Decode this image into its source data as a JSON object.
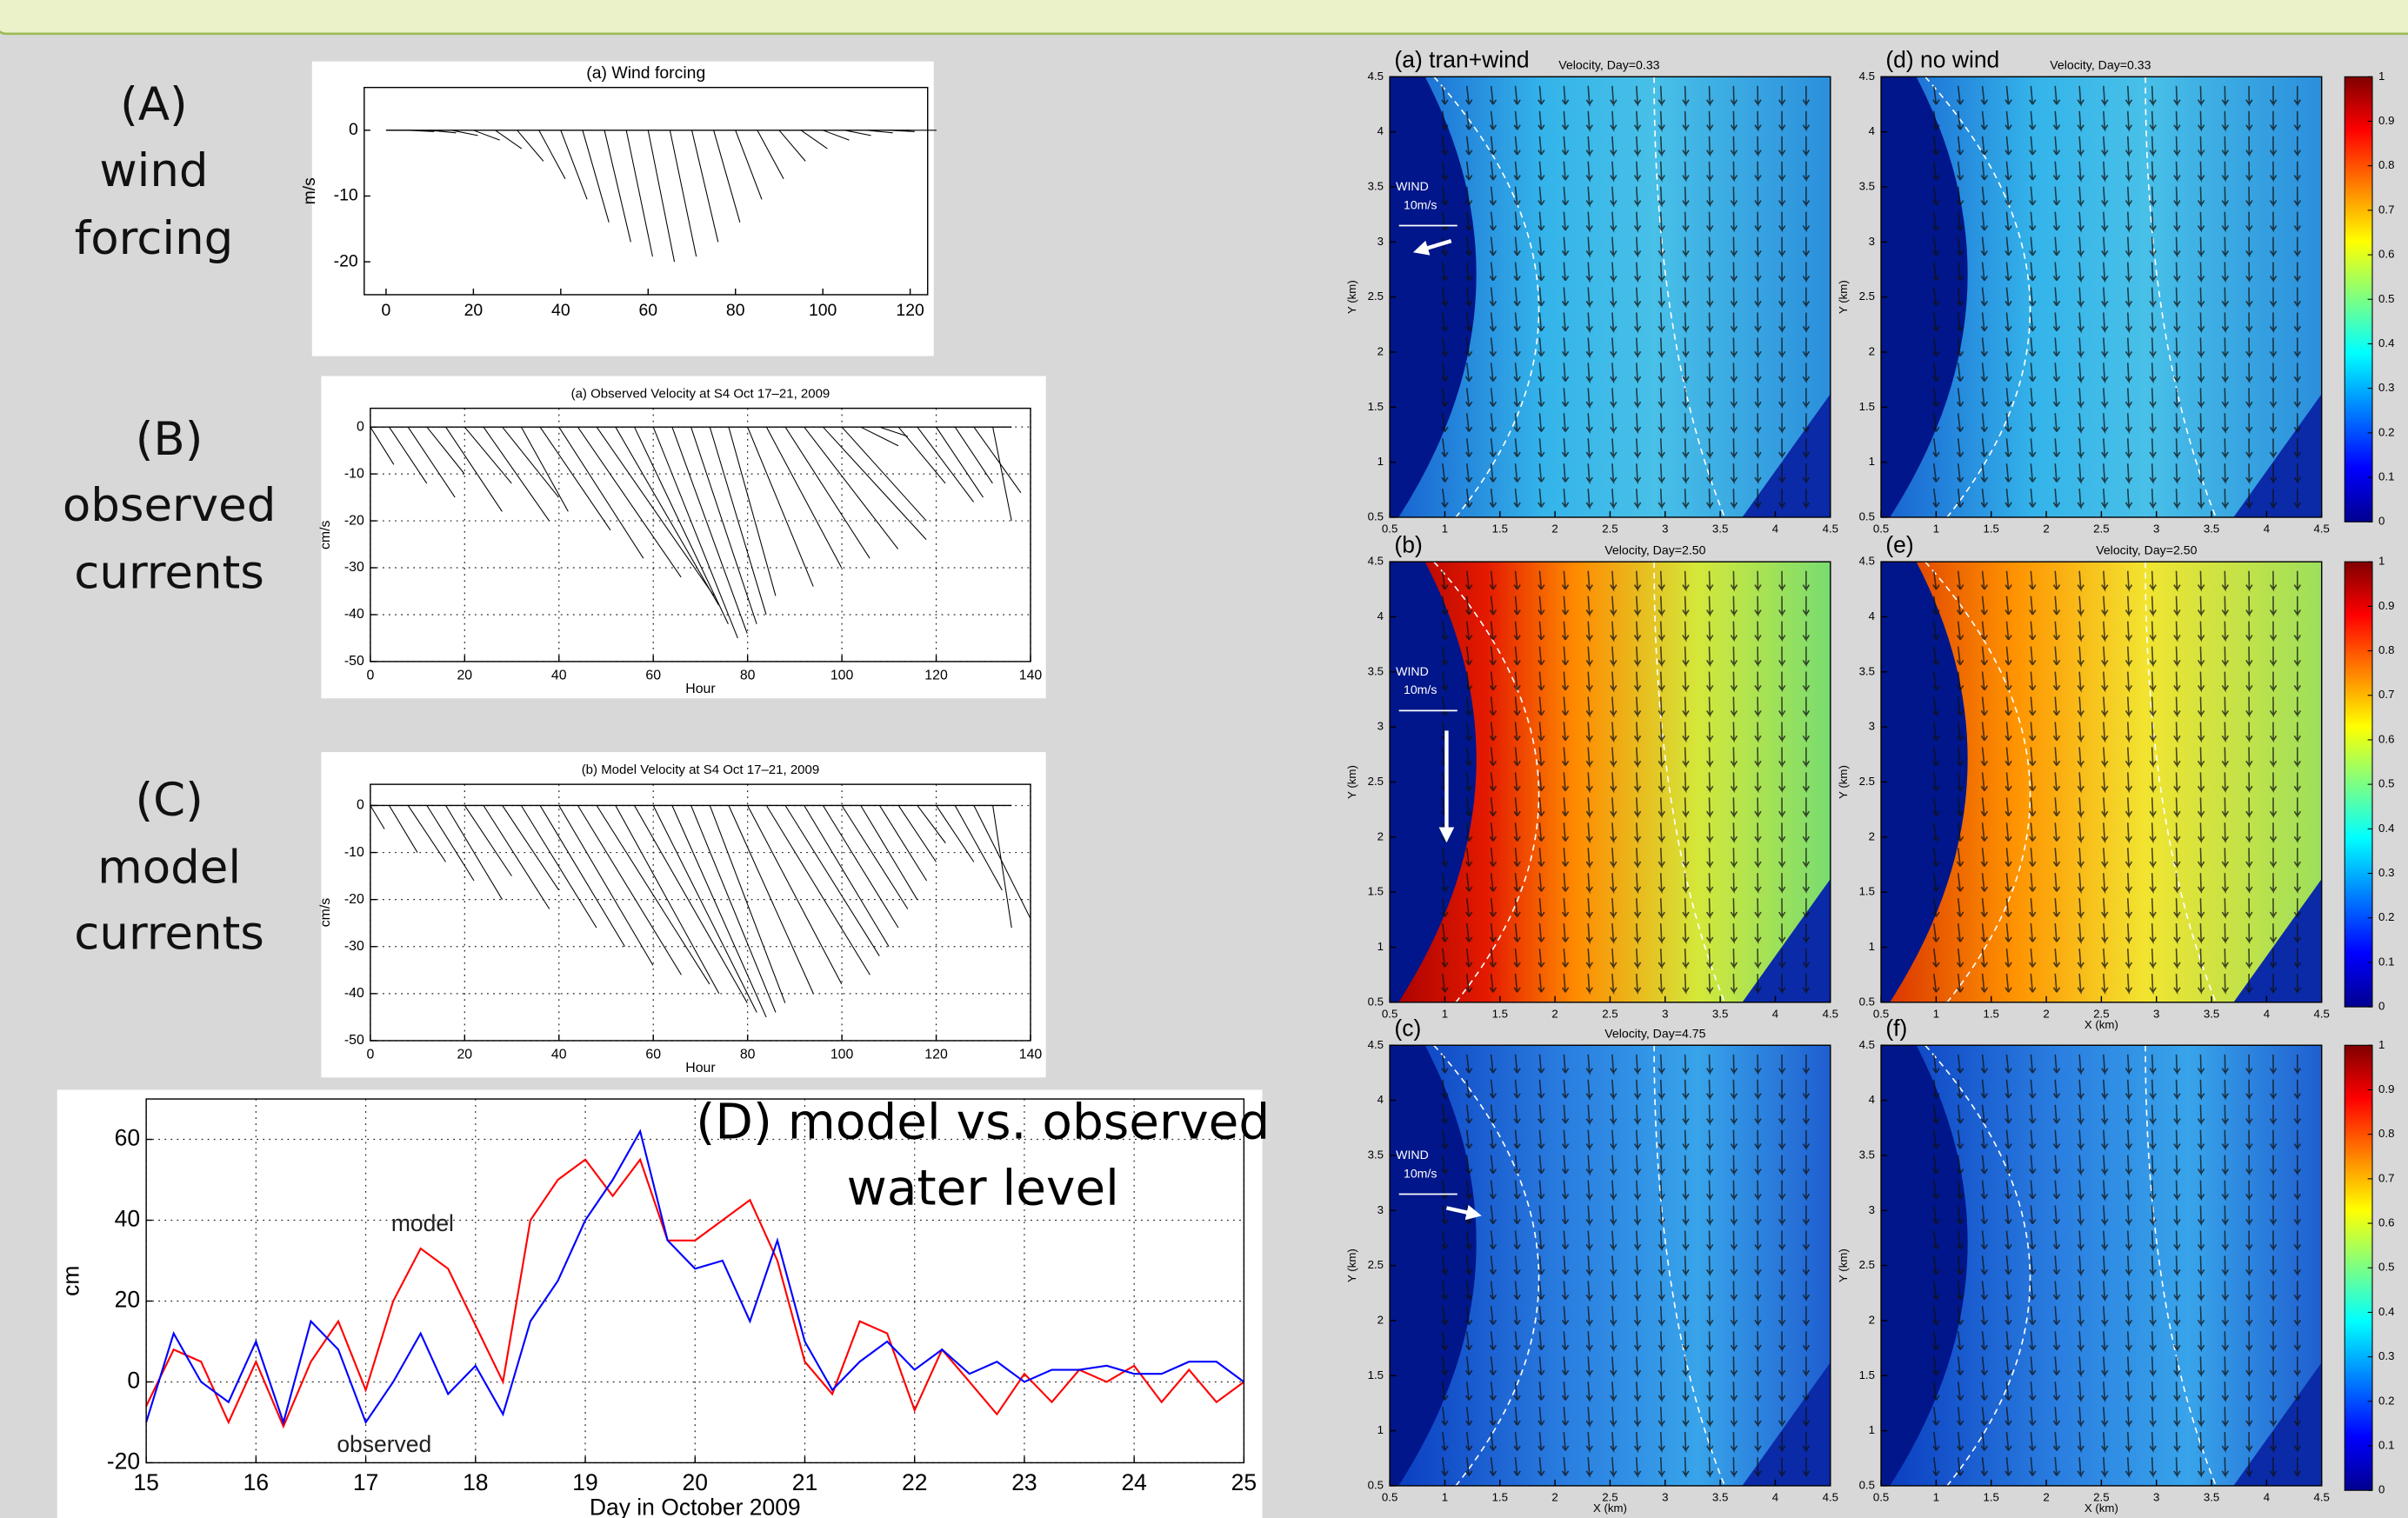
{
  "panel_labels": [
    [
      "(A)",
      "wind",
      "forcing"
    ],
    [
      "(B)",
      "observed",
      "currents"
    ],
    [
      "(C)",
      "model",
      "currents"
    ]
  ],
  "chart_data": [
    {
      "type": "stick",
      "title": "(a) Wind forcing",
      "ylabel": "m/s",
      "xlim": [
        -5,
        124
      ],
      "ylim": [
        -25,
        6.5
      ],
      "xticks": [
        0,
        20,
        40,
        60,
        80,
        100,
        120
      ],
      "yticks": [
        0,
        -10,
        -20
      ],
      "grid": false,
      "color": "#000000",
      "x": [
        0,
        5,
        10,
        15,
        20,
        25,
        30,
        35,
        40,
        45,
        50,
        55,
        60,
        65,
        70,
        75,
        80,
        85,
        90,
        95,
        100,
        105,
        110,
        115,
        120
      ],
      "u": [
        4,
        4,
        4,
        4,
        4,
        4,
        4,
        4,
        4,
        4,
        4,
        4,
        4,
        4,
        4,
        4,
        4,
        4,
        4,
        4,
        4,
        4,
        4,
        4,
        4
      ],
      "v": [
        0,
        -0.2,
        -0.4,
        -0.8,
        -1.5,
        -2.8,
        -4.7,
        -7.4,
        -10.5,
        -14,
        -17,
        -19.2,
        -20,
        -19.2,
        -17,
        -14,
        -10.5,
        -7.4,
        -4.7,
        -2.8,
        -1.5,
        -0.8,
        -0.4,
        -0.2,
        0
      ]
    },
    {
      "type": "stick",
      "title": "(a) Observed Velocity at S4 Oct 17–21, 2009",
      "xlabel": "Hour",
      "ylabel": "cm/s",
      "xlim": [
        0,
        140
      ],
      "ylim": [
        -50,
        4
      ],
      "xticks": [
        0,
        20,
        40,
        60,
        80,
        100,
        120,
        140
      ],
      "yticks": [
        0,
        -10,
        -20,
        -30,
        -40,
        -50
      ],
      "grid": true,
      "color": "#000000",
      "x": [
        0,
        4,
        8,
        12,
        16,
        20,
        24,
        28,
        32,
        36,
        40,
        44,
        48,
        52,
        56,
        60,
        64,
        68,
        72,
        76,
        80,
        84,
        88,
        92,
        96,
        100,
        104,
        108,
        112,
        116,
        120,
        124,
        128,
        132,
        136
      ],
      "u": [
        5,
        8,
        10,
        8,
        12,
        10,
        14,
        12,
        10,
        15,
        18,
        22,
        25,
        22,
        20,
        18,
        16,
        14,
        12,
        10,
        14,
        16,
        18,
        20,
        22,
        18,
        8,
        6,
        10,
        12,
        10,
        8,
        10,
        4,
        0
      ],
      "v": [
        -8,
        -12,
        -15,
        -10,
        -18,
        -12,
        -20,
        -15,
        -18,
        -22,
        -28,
        -32,
        -36,
        -38,
        -42,
        -45,
        -44,
        -42,
        -40,
        -36,
        -34,
        -30,
        -28,
        -26,
        -24,
        -20,
        -4,
        -2,
        -12,
        -16,
        -15,
        -12,
        -14,
        -20,
        0
      ]
    },
    {
      "type": "stick",
      "title": "(b) Model Velocity at S4 Oct 17–21, 2009",
      "xlabel": "Hour",
      "ylabel": "cm/s",
      "xlim": [
        0,
        140
      ],
      "ylim": [
        -50,
        4.5
      ],
      "xticks": [
        0,
        20,
        40,
        60,
        80,
        100,
        120,
        140
      ],
      "yticks": [
        0,
        -10,
        -20,
        -30,
        -40,
        -50
      ],
      "grid": true,
      "color": "#000000",
      "x": [
        0,
        4,
        8,
        12,
        16,
        20,
        24,
        28,
        32,
        36,
        40,
        44,
        48,
        52,
        56,
        60,
        64,
        68,
        72,
        76,
        80,
        84,
        88,
        92,
        96,
        100,
        104,
        108,
        112,
        116,
        120,
        124,
        128,
        132,
        136
      ],
      "u": [
        3,
        6,
        8,
        10,
        12,
        10,
        14,
        12,
        16,
        18,
        20,
        22,
        24,
        22,
        24,
        22,
        20,
        18,
        16,
        18,
        20,
        22,
        20,
        18,
        16,
        14,
        12,
        10,
        8,
        6,
        8,
        10,
        12,
        4,
        0
      ],
      "v": [
        -5,
        -10,
        -12,
        -16,
        -20,
        -15,
        -22,
        -18,
        -26,
        -30,
        -34,
        -36,
        -38,
        -40,
        -42,
        -44,
        -45,
        -44,
        -42,
        -40,
        -38,
        -36,
        -32,
        -30,
        -26,
        -22,
        -20,
        -16,
        -12,
        -8,
        -12,
        -18,
        -24,
        -26,
        0
      ]
    },
    {
      "type": "line",
      "annotation": [
        "(D) model vs. observed",
        "water level"
      ],
      "xlabel": "Day in October 2009",
      "ylabel": "cm",
      "xlim": [
        15,
        25
      ],
      "ylim": [
        -20,
        70
      ],
      "xticks": [
        15,
        16,
        17,
        18,
        19,
        20,
        21,
        22,
        23,
        24,
        25
      ],
      "yticks": [
        -20,
        0,
        20,
        40,
        60
      ],
      "grid": true,
      "x": [
        15,
        15.25,
        15.5,
        15.75,
        16,
        16.25,
        16.5,
        16.75,
        17,
        17.25,
        17.5,
        17.75,
        18,
        18.25,
        18.5,
        18.75,
        19,
        19.25,
        19.5,
        19.75,
        20,
        20.25,
        20.5,
        20.75,
        21,
        21.25,
        21.5,
        21.75,
        22,
        22.25,
        22.5,
        22.75,
        23,
        23.25,
        23.5,
        23.75,
        24,
        24.25,
        24.5,
        24.75,
        25
      ],
      "series": [
        {
          "name": "model",
          "color": "#ff0000",
          "values": [
            -6,
            8,
            5,
            -10,
            5,
            -11,
            5,
            15,
            -2,
            20,
            33,
            28,
            14,
            0,
            40,
            50,
            55,
            46,
            55,
            35,
            35,
            40,
            45,
            30,
            5,
            -3,
            15,
            12,
            -7,
            8,
            0,
            -8,
            2,
            -5,
            3,
            0,
            4,
            -5,
            3,
            -5,
            0
          ]
        },
        {
          "name": "observed",
          "color": "#0000ff",
          "values": [
            -10,
            12,
            0,
            -5,
            10,
            -10,
            15,
            8,
            -10,
            0,
            12,
            -3,
            4,
            -8,
            15,
            25,
            40,
            50,
            62,
            35,
            28,
            30,
            15,
            35,
            10,
            -2,
            5,
            10,
            3,
            8,
            2,
            5,
            0,
            3,
            3,
            4,
            2,
            2,
            5,
            5,
            0
          ]
        }
      ]
    },
    {
      "type": "vector_map",
      "title": "(a) tran+wind",
      "subtitle": "Velocity, Day=0.33",
      "ylabel": "Y (km)",
      "xlim": [
        0.5,
        4.5
      ],
      "ylim": [
        0.5,
        4.5
      ],
      "xticks": [
        0.5,
        1,
        1.5,
        2,
        2.5,
        3,
        3.5,
        4,
        4.5
      ],
      "yticks": [
        0.5,
        1,
        1.5,
        2,
        2.5,
        3,
        3.5,
        4,
        4.5
      ],
      "wind": {
        "label": "WIND",
        "scale": "10m/s"
      }
    },
    {
      "type": "vector_map",
      "title": "(b)",
      "subtitle": "Velocity, Day=2.50",
      "ylabel": "Y (km)",
      "xlim": [
        0.5,
        4.5
      ],
      "ylim": [
        0.5,
        4.5
      ],
      "xticks": [
        0.5,
        1,
        1.5,
        2,
        2.5,
        3,
        3.5,
        4,
        4.5
      ],
      "yticks": [
        0.5,
        1,
        1.5,
        2,
        2.5,
        3,
        3.5,
        4,
        4.5
      ],
      "wind": {
        "label": "WIND",
        "scale": "10m/s"
      }
    },
    {
      "type": "vector_map",
      "title": "(c)",
      "subtitle": "Velocity, Day=4.75",
      "ylabel": "Y (km)",
      "xlabel": "X (km)",
      "xlim": [
        0.5,
        4.5
      ],
      "ylim": [
        0.5,
        4.5
      ],
      "xticks": [
        0.5,
        1,
        1.5,
        2,
        2.5,
        3,
        3.5,
        4,
        4.5
      ],
      "yticks": [
        0.5,
        1,
        1.5,
        2,
        2.5,
        3,
        3.5,
        4,
        4.5
      ],
      "wind": {
        "label": "WIND",
        "scale": "10m/s"
      }
    },
    {
      "type": "vector_map",
      "title": "(d) no wind",
      "subtitle": "Velocity, Day=0.33",
      "ylabel": "Y (km)",
      "xlim": [
        0.5,
        4.5
      ],
      "ylim": [
        0.5,
        4.5
      ],
      "xticks": [
        0.5,
        1,
        1.5,
        2,
        2.5,
        3,
        3.5,
        4,
        4.5
      ],
      "yticks": [
        0.5,
        1,
        1.5,
        2,
        2.5,
        3,
        3.5,
        4,
        4.5
      ],
      "colorbar": {
        "lim": [
          0,
          1
        ],
        "ticks": [
          0,
          0.1,
          0.2,
          0.3,
          0.4,
          0.5,
          0.6,
          0.7,
          0.8,
          0.9,
          1
        ]
      }
    },
    {
      "type": "vector_map",
      "title": "(e)",
      "subtitle": "Velocity, Day=2.50",
      "ylabel": "Y (km)",
      "xlabel": "X (km)",
      "xlim": [
        0.5,
        4.5
      ],
      "ylim": [
        0.5,
        4.5
      ],
      "xticks": [
        0.5,
        1,
        1.5,
        2,
        2.5,
        3,
        3.5,
        4,
        4.5
      ],
      "yticks": [
        0.5,
        1,
        1.5,
        2,
        2.5,
        3,
        3.5,
        4,
        4.5
      ],
      "colorbar": {
        "lim": [
          0,
          1
        ],
        "ticks": [
          0,
          0.1,
          0.2,
          0.3,
          0.4,
          0.5,
          0.6,
          0.7,
          0.8,
          0.9,
          1
        ]
      }
    },
    {
      "type": "vector_map",
      "title": "(f)",
      "ylabel": "Y (km)",
      "xlabel": "X (km)",
      "xlim": [
        0.5,
        4.5
      ],
      "ylim": [
        0.5,
        4.5
      ],
      "xticks": [
        0.5,
        1,
        1.5,
        2,
        2.5,
        3,
        3.5,
        4,
        4.5
      ],
      "yticks": [
        0.5,
        1,
        1.5,
        2,
        2.5,
        3,
        3.5,
        4,
        4.5
      ],
      "colorbar": {
        "lim": [
          0,
          1
        ],
        "ticks": [
          0,
          0.1,
          0.2,
          0.3,
          0.4,
          0.5,
          0.6,
          0.7,
          0.8,
          0.9,
          1
        ]
      }
    }
  ]
}
